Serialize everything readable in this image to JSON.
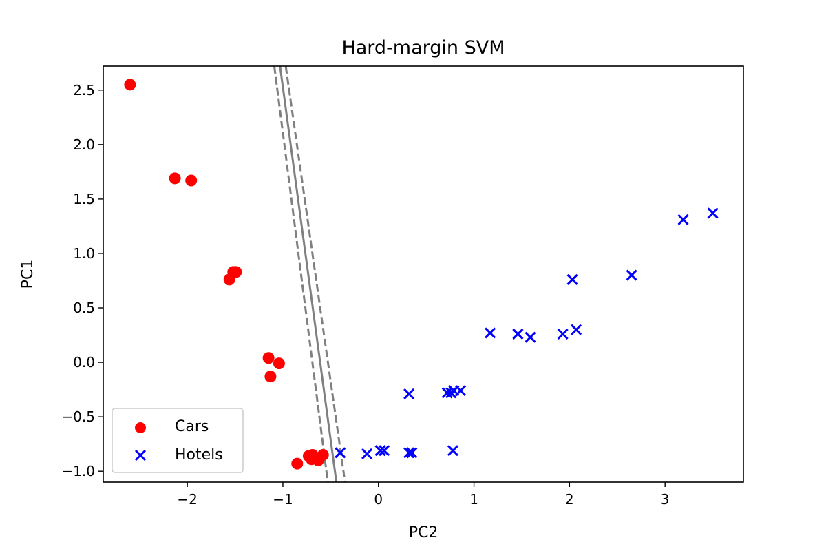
{
  "chart_data": {
    "type": "scatter",
    "title": "Hard-margin SVM",
    "xlabel": "PC2",
    "ylabel": "PC1",
    "xlim": [
      -2.88,
      3.82
    ],
    "ylim": [
      -1.1,
      2.72
    ],
    "xticks": [
      -2,
      -1,
      0,
      1,
      2,
      3
    ],
    "xtick_labels": [
      "−2",
      "−1",
      "0",
      "1",
      "2",
      "3"
    ],
    "yticks": [
      -1.0,
      -0.5,
      0.0,
      0.5,
      1.0,
      1.5,
      2.0,
      2.5
    ],
    "ytick_labels": [
      "−1.0",
      "−0.5",
      "0.0",
      "0.5",
      "1.0",
      "1.5",
      "2.0",
      "2.5"
    ],
    "grid": false,
    "legend_position": "lower-left",
    "series": [
      {
        "name": "Cars",
        "marker": "circle",
        "color": "#ff0000",
        "points": [
          [
            -2.6,
            2.55
          ],
          [
            -2.13,
            1.69
          ],
          [
            -1.96,
            1.67
          ],
          [
            -1.52,
            0.83
          ],
          [
            -1.49,
            0.83
          ],
          [
            -1.56,
            0.76
          ],
          [
            -1.15,
            0.04
          ],
          [
            -1.04,
            -0.01
          ],
          [
            -1.13,
            -0.13
          ],
          [
            -0.85,
            -0.93
          ],
          [
            -0.73,
            -0.86
          ],
          [
            -0.69,
            -0.85
          ],
          [
            -0.7,
            -0.89
          ],
          [
            -0.63,
            -0.9
          ],
          [
            -0.58,
            -0.85
          ]
        ]
      },
      {
        "name": "Hotels",
        "marker": "x",
        "color": "#0000ff",
        "points": [
          [
            -0.4,
            -0.83
          ],
          [
            -0.12,
            -0.84
          ],
          [
            0.02,
            -0.81
          ],
          [
            0.06,
            -0.81
          ],
          [
            0.32,
            -0.83
          ],
          [
            0.35,
            -0.83
          ],
          [
            0.78,
            -0.81
          ],
          [
            0.32,
            -0.29
          ],
          [
            0.72,
            -0.28
          ],
          [
            0.76,
            -0.28
          ],
          [
            0.79,
            -0.26
          ],
          [
            0.86,
            -0.26
          ],
          [
            1.17,
            0.27
          ],
          [
            1.46,
            0.26
          ],
          [
            1.59,
            0.23
          ],
          [
            1.93,
            0.26
          ],
          [
            2.07,
            0.3
          ],
          [
            2.03,
            0.76
          ],
          [
            2.65,
            0.8
          ],
          [
            3.19,
            1.31
          ],
          [
            3.5,
            1.37
          ]
        ]
      }
    ],
    "decision_boundary": {
      "color": "#808080",
      "center_line": [
        [
          -1.03,
          2.72
        ],
        [
          -0.44,
          -1.1
        ]
      ],
      "margin_lines": [
        [
          [
            -1.09,
            2.72
          ],
          [
            -0.53,
            -1.1
          ]
        ],
        [
          [
            -0.97,
            2.72
          ],
          [
            -0.35,
            -1.1
          ]
        ]
      ]
    }
  }
}
